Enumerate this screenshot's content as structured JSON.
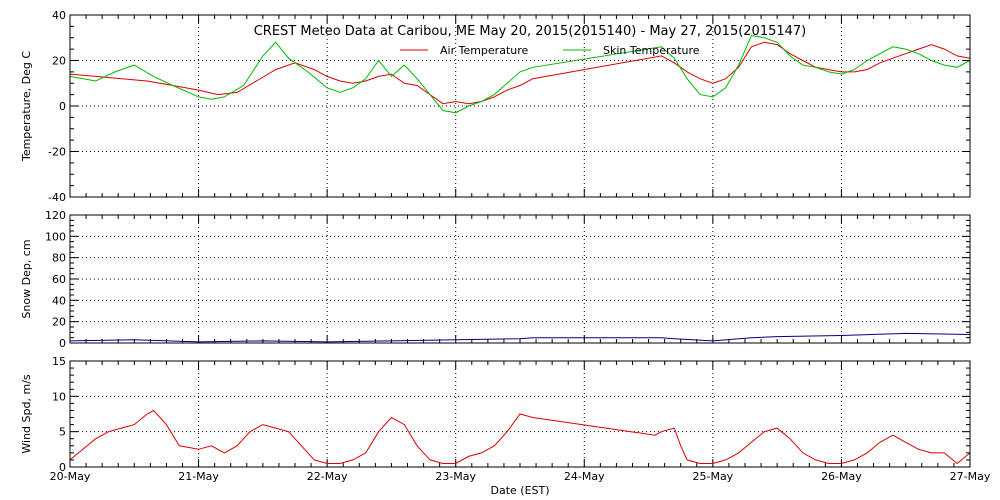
{
  "chart_data": {
    "title": "CREST Meteo Data at Caribou, ME   May 20, 2015(2015140) - May 27, 2015(2015147)",
    "xlabel": "Date (EST)",
    "x_ticks": [
      "20-May",
      "21-May",
      "22-May",
      "23-May",
      "24-May",
      "25-May",
      "26-May",
      "27-May"
    ],
    "x_range_days": [
      0,
      7
    ],
    "panels": [
      {
        "type": "line",
        "ylabel": "Temperature, Deg C",
        "ylim": [
          -40,
          40
        ],
        "yticks": [
          -40,
          -20,
          0,
          20,
          40
        ],
        "legend_position": "top-center",
        "series": [
          {
            "name": "Air Temperature",
            "color": "#dd0000",
            "x": [
              0,
              0.2,
              0.4,
              0.6,
              0.8,
              1.0,
              1.15,
              1.3,
              1.45,
              1.6,
              1.75,
              1.9,
              2.0,
              2.1,
              2.2,
              2.3,
              2.4,
              2.5,
              2.6,
              2.7,
              2.8,
              2.9,
              3.0,
              3.1,
              3.2,
              3.3,
              3.4,
              3.5,
              3.6,
              4.6,
              4.7,
              4.8,
              4.9,
              5.0,
              5.1,
              5.2,
              5.3,
              5.4,
              5.5,
              5.6,
              5.7,
              5.8,
              5.9,
              6.0,
              6.1,
              6.2,
              6.3,
              6.4,
              6.5,
              6.6,
              6.7,
              6.8,
              6.9,
              7.0
            ],
            "y": [
              14,
              13,
              12,
              11,
              9,
              7,
              5,
              6,
              11,
              16,
              19,
              16,
              13,
              11,
              10,
              11,
              13,
              14,
              10,
              9,
              5,
              1,
              2,
              1,
              2,
              4,
              7,
              9,
              12,
              22,
              19,
              15,
              12,
              10,
              12,
              17,
              26,
              28,
              27,
              23,
              20,
              17,
              16,
              15,
              15,
              16,
              19,
              21,
              23,
              25,
              27,
              25,
              22,
              21
            ]
          },
          {
            "name": "Skin Temperature",
            "color": "#00bb00",
            "x": [
              0,
              0.2,
              0.35,
              0.5,
              0.65,
              0.8,
              1.0,
              1.1,
              1.2,
              1.35,
              1.5,
              1.6,
              1.7,
              1.85,
              2.0,
              2.1,
              2.2,
              2.3,
              2.4,
              2.5,
              2.6,
              2.7,
              2.8,
              2.9,
              3.0,
              3.1,
              3.2,
              3.3,
              3.4,
              3.5,
              3.6,
              4.6,
              4.7,
              4.8,
              4.9,
              5.0,
              5.1,
              5.2,
              5.3,
              5.4,
              5.5,
              5.6,
              5.7,
              5.8,
              5.9,
              6.0,
              6.1,
              6.2,
              6.3,
              6.4,
              6.5,
              6.6,
              6.7,
              6.8,
              6.9,
              7.0
            ],
            "y": [
              13,
              11,
              15,
              18,
              13,
              9,
              4,
              3,
              4,
              9,
              22,
              28,
              21,
              15,
              8,
              6,
              8,
              12,
              20,
              13,
              18,
              12,
              5,
              -2,
              -3,
              0,
              2,
              5,
              10,
              15,
              17,
              26,
              21,
              12,
              5,
              4,
              8,
              18,
              31,
              30,
              28,
              22,
              18,
              17,
              15,
              14,
              16,
              20,
              23,
              26,
              25,
              23,
              20,
              18,
              17,
              20
            ]
          }
        ]
      },
      {
        "type": "line",
        "ylabel": "Snow Dep, cm",
        "ylim": [
          0,
          120
        ],
        "yticks": [
          0,
          20,
          40,
          60,
          80,
          100,
          120
        ],
        "series": [
          {
            "color": "#000080",
            "x": [
              0,
              0.5,
              1.0,
              1.5,
              2.0,
              2.5,
              3.0,
              3.5,
              3.6,
              4.6,
              4.7,
              5.0,
              5.3,
              5.5,
              6.0,
              6.5,
              7.0
            ],
            "y": [
              2,
              3,
              1,
              2,
              1,
              2,
              3,
              4,
              5,
              5,
              4,
              2,
              5,
              6,
              7,
              9,
              8
            ]
          }
        ]
      },
      {
        "type": "line",
        "ylabel": "Wind Spd, m/s",
        "ylim": [
          0,
          15
        ],
        "yticks": [
          0,
          5,
          10,
          15
        ],
        "series": [
          {
            "color": "#dd0000",
            "x": [
              0,
              0.1,
              0.2,
              0.3,
              0.4,
              0.5,
              0.6,
              0.65,
              0.75,
              0.85,
              1.0,
              1.1,
              1.2,
              1.3,
              1.4,
              1.5,
              1.6,
              1.7,
              1.8,
              1.9,
              2.0,
              2.1,
              2.2,
              2.3,
              2.4,
              2.5,
              2.6,
              2.7,
              2.8,
              2.9,
              3.0,
              3.1,
              3.2,
              3.3,
              3.4,
              3.5,
              3.6,
              4.55,
              4.6,
              4.7,
              4.75,
              4.8,
              4.9,
              5.0,
              5.1,
              5.2,
              5.3,
              5.4,
              5.5,
              5.6,
              5.7,
              5.8,
              5.9,
              6.0,
              6.1,
              6.2,
              6.3,
              6.4,
              6.5,
              6.6,
              6.7,
              6.8,
              6.9,
              7.0
            ],
            "y": [
              1,
              2.5,
              4,
              5,
              5.5,
              6,
              7.5,
              8,
              6,
              3,
              2.5,
              3,
              2,
              3,
              5,
              6,
              5.5,
              5,
              3,
              1,
              0.5,
              0.5,
              1,
              2,
              5,
              7,
              6,
              3,
              1,
              0.5,
              0.5,
              1.5,
              2,
              3,
              5,
              7.5,
              7,
              4.5,
              5,
              5.5,
              3,
              1,
              0.5,
              0.5,
              1,
              2,
              3.5,
              5,
              5.5,
              4,
              2,
              1,
              0.5,
              0.5,
              1,
              2,
              3.5,
              4.5,
              3.5,
              2.5,
              2,
              2,
              0.5,
              2
            ]
          }
        ]
      }
    ]
  }
}
